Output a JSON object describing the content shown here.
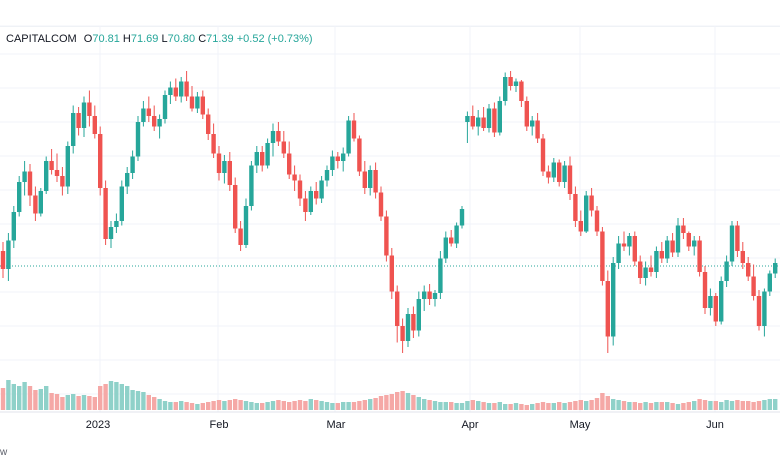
{
  "legend": {
    "symbol": "CAPITALCOM",
    "open_label": "O",
    "open": "70.81",
    "high_label": "H",
    "high": "71.69",
    "low_label": "L",
    "low": "70.80",
    "close_label": "C",
    "close": "71.39",
    "change": "+0.52",
    "change_pct": "(+0.73%)"
  },
  "footer_fragment": "w",
  "chart_data": {
    "type": "candlestick",
    "x_tick_labels": [
      "2023",
      "Feb",
      "Mar",
      "Apr",
      "May",
      "Jun"
    ],
    "price_line": 75.6,
    "ylim": [
      67,
      90
    ],
    "colors": {
      "up": "#26a69a",
      "down": "#ef5350",
      "up_vol": "#8fd1c9",
      "down_vol": "#f5a8a6"
    },
    "candles": [
      [
        76.6,
        77.2,
        74.8,
        75.4
      ],
      [
        75.4,
        77.8,
        74.6,
        77.3
      ],
      [
        77.3,
        79.6,
        76.8,
        79.2
      ],
      [
        79.2,
        81.6,
        78.9,
        81.2
      ],
      [
        81.2,
        82.6,
        80.3,
        81.9
      ],
      [
        81.9,
        82.4,
        79.6,
        80.3
      ],
      [
        80.3,
        80.9,
        78.6,
        79.1
      ],
      [
        79.1,
        80.8,
        78.9,
        80.6
      ],
      [
        80.6,
        82.9,
        80.4,
        82.6
      ],
      [
        82.6,
        83.4,
        81.7,
        82.0
      ],
      [
        82.0,
        83.1,
        81.2,
        81.6
      ],
      [
        81.6,
        82.2,
        80.3,
        80.9
      ],
      [
        80.9,
        83.9,
        80.4,
        83.6
      ],
      [
        83.6,
        86.3,
        83.1,
        85.8
      ],
      [
        85.8,
        86.2,
        84.3,
        84.8
      ],
      [
        84.8,
        86.9,
        84.2,
        86.5
      ],
      [
        86.5,
        87.3,
        84.9,
        85.6
      ],
      [
        85.6,
        86.3,
        84.1,
        84.4
      ],
      [
        84.4,
        84.9,
        80.3,
        80.8
      ],
      [
        80.8,
        81.3,
        77.0,
        77.4
      ],
      [
        77.4,
        78.6,
        76.8,
        78.2
      ],
      [
        78.2,
        79.1,
        77.8,
        78.6
      ],
      [
        78.6,
        81.3,
        78.3,
        80.9
      ],
      [
        80.9,
        82.2,
        80.4,
        81.8
      ],
      [
        81.8,
        83.3,
        81.4,
        82.9
      ],
      [
        82.9,
        85.6,
        82.6,
        85.2
      ],
      [
        85.2,
        86.6,
        84.9,
        86.1
      ],
      [
        86.1,
        86.9,
        85.2,
        85.6
      ],
      [
        85.6,
        86.3,
        84.6,
        84.9
      ],
      [
        84.9,
        85.7,
        84.1,
        85.4
      ],
      [
        85.4,
        87.3,
        85.1,
        87.0
      ],
      [
        87.0,
        87.9,
        86.4,
        87.5
      ],
      [
        87.5,
        88.1,
        86.6,
        86.9
      ],
      [
        86.9,
        88.2,
        86.5,
        87.9
      ],
      [
        87.9,
        88.6,
        86.6,
        86.9
      ],
      [
        86.9,
        87.6,
        85.9,
        86.1
      ],
      [
        86.1,
        87.2,
        85.8,
        86.9
      ],
      [
        86.9,
        87.3,
        85.4,
        85.7
      ],
      [
        85.7,
        86.1,
        84.0,
        84.4
      ],
      [
        84.4,
        85.1,
        82.8,
        83.1
      ],
      [
        83.1,
        83.6,
        81.3,
        81.8
      ],
      [
        81.8,
        83.0,
        81.1,
        82.6
      ],
      [
        82.6,
        83.2,
        80.6,
        81.0
      ],
      [
        81.0,
        81.5,
        77.8,
        78.1
      ],
      [
        78.1,
        78.6,
        76.6,
        77.0
      ],
      [
        77.0,
        80.1,
        76.8,
        79.6
      ],
      [
        79.6,
        82.6,
        79.3,
        82.3
      ],
      [
        82.3,
        83.6,
        81.8,
        83.2
      ],
      [
        83.2,
        83.6,
        81.9,
        82.3
      ],
      [
        82.3,
        84.1,
        82.1,
        83.8
      ],
      [
        83.8,
        85.1,
        82.9,
        84.6
      ],
      [
        84.6,
        85.2,
        83.6,
        83.9
      ],
      [
        83.9,
        84.6,
        82.8,
        83.1
      ],
      [
        83.1,
        83.9,
        81.4,
        81.7
      ],
      [
        81.7,
        82.3,
        80.6,
        81.3
      ],
      [
        81.3,
        81.7,
        79.6,
        80.1
      ],
      [
        80.1,
        80.6,
        78.6,
        79.2
      ],
      [
        79.2,
        80.9,
        79.0,
        80.6
      ],
      [
        80.6,
        81.2,
        79.7,
        80.1
      ],
      [
        80.1,
        81.6,
        79.8,
        81.3
      ],
      [
        81.3,
        82.3,
        80.9,
        82.0
      ],
      [
        82.0,
        83.3,
        81.6,
        82.9
      ],
      [
        82.9,
        83.2,
        82.1,
        82.6
      ],
      [
        82.6,
        83.5,
        81.9,
        83.1
      ],
      [
        83.1,
        85.6,
        82.9,
        85.3
      ],
      [
        85.3,
        85.8,
        83.9,
        84.1
      ],
      [
        84.1,
        84.3,
        81.6,
        81.9
      ],
      [
        81.9,
        82.6,
        80.4,
        80.8
      ],
      [
        80.8,
        82.3,
        80.3,
        82.0
      ],
      [
        82.0,
        82.5,
        80.1,
        80.5
      ],
      [
        80.5,
        80.9,
        78.6,
        78.9
      ],
      [
        78.9,
        79.3,
        75.9,
        76.3
      ],
      [
        76.3,
        76.8,
        73.4,
        73.9
      ],
      [
        73.9,
        74.3,
        70.5,
        71.6
      ],
      [
        71.6,
        72.1,
        69.8,
        70.6
      ],
      [
        70.6,
        72.8,
        70.2,
        72.4
      ],
      [
        72.4,
        72.9,
        70.8,
        71.3
      ],
      [
        71.3,
        73.9,
        70.9,
        73.4
      ],
      [
        73.4,
        74.3,
        72.6,
        73.9
      ],
      [
        73.9,
        74.4,
        73.0,
        73.4
      ],
      [
        73.4,
        74.0,
        72.9,
        73.8
      ],
      [
        73.8,
        76.6,
        73.4,
        76.1
      ],
      [
        76.1,
        77.9,
        75.8,
        77.5
      ],
      [
        77.5,
        78.0,
        76.9,
        77.1
      ],
      [
        77.1,
        78.5,
        76.8,
        78.3
      ],
      [
        78.3,
        79.6,
        78.1,
        79.4
      ],
      [
        85.2,
        85.9,
        83.8,
        85.6
      ],
      [
        85.6,
        86.3,
        84.7,
        84.9
      ],
      [
        84.9,
        86.0,
        84.3,
        85.5
      ],
      [
        85.5,
        86.2,
        84.6,
        84.8
      ],
      [
        84.8,
        86.4,
        84.5,
        86.1
      ],
      [
        86.1,
        86.5,
        84.2,
        84.5
      ],
      [
        84.5,
        86.9,
        84.3,
        86.6
      ],
      [
        86.6,
        88.5,
        86.3,
        88.2
      ],
      [
        88.2,
        88.6,
        87.3,
        87.6
      ],
      [
        87.6,
        88.1,
        87.2,
        87.9
      ],
      [
        87.9,
        88.0,
        86.2,
        86.6
      ],
      [
        86.6,
        86.9,
        84.6,
        84.9
      ],
      [
        84.9,
        85.6,
        84.3,
        85.3
      ],
      [
        85.3,
        85.8,
        83.8,
        84.1
      ],
      [
        84.1,
        84.4,
        81.6,
        81.9
      ],
      [
        81.9,
        82.3,
        81.1,
        81.5
      ],
      [
        81.5,
        82.8,
        81.2,
        82.5
      ],
      [
        82.5,
        82.7,
        80.9,
        81.2
      ],
      [
        81.2,
        82.6,
        80.8,
        82.3
      ],
      [
        82.3,
        82.9,
        80.0,
        80.4
      ],
      [
        80.4,
        80.9,
        78.2,
        78.6
      ],
      [
        78.6,
        79.3,
        77.6,
        77.9
      ],
      [
        77.9,
        80.6,
        77.8,
        80.3
      ],
      [
        80.3,
        80.8,
        78.9,
        79.3
      ],
      [
        79.3,
        79.6,
        77.6,
        77.9
      ],
      [
        77.9,
        78.2,
        74.3,
        74.6
      ],
      [
        74.6,
        75.3,
        69.8,
        70.9
      ],
      [
        70.9,
        76.2,
        70.3,
        75.8
      ],
      [
        75.8,
        77.6,
        75.4,
        77.1
      ],
      [
        77.1,
        77.9,
        76.6,
        76.9
      ],
      [
        76.9,
        77.8,
        76.3,
        77.6
      ],
      [
        77.6,
        77.9,
        75.6,
        75.9
      ],
      [
        75.9,
        76.3,
        74.4,
        74.8
      ],
      [
        74.8,
        75.9,
        74.3,
        75.5
      ],
      [
        75.5,
        76.3,
        74.9,
        75.2
      ],
      [
        75.2,
        76.9,
        74.8,
        76.6
      ],
      [
        76.6,
        77.2,
        75.8,
        76.1
      ],
      [
        76.1,
        77.6,
        75.8,
        77.3
      ],
      [
        77.3,
        77.8,
        76.2,
        76.5
      ],
      [
        76.5,
        78.8,
        76.2,
        78.3
      ],
      [
        78.3,
        78.8,
        77.4,
        77.8
      ],
      [
        77.8,
        77.9,
        76.6,
        76.9
      ],
      [
        76.9,
        77.6,
        76.3,
        77.3
      ],
      [
        77.3,
        77.6,
        74.9,
        75.2
      ],
      [
        75.2,
        75.6,
        72.4,
        72.8
      ],
      [
        72.8,
        74.1,
        72.3,
        73.6
      ],
      [
        73.6,
        73.8,
        71.6,
        71.9
      ],
      [
        71.9,
        74.9,
        71.7,
        74.6
      ],
      [
        74.6,
        76.3,
        74.2,
        75.9
      ],
      [
        75.9,
        78.6,
        75.6,
        78.3
      ],
      [
        78.3,
        78.6,
        76.2,
        76.6
      ],
      [
        76.6,
        77.2,
        75.4,
        75.8
      ],
      [
        75.8,
        76.2,
        74.6,
        74.9
      ],
      [
        74.9,
        75.7,
        73.3,
        73.6
      ],
      [
        73.6,
        74.0,
        71.3,
        71.6
      ],
      [
        71.6,
        74.1,
        70.9,
        73.9
      ],
      [
        73.9,
        75.3,
        73.6,
        75.1
      ],
      [
        75.1,
        76.1,
        74.8,
        75.8
      ]
    ],
    "volumes": [
      0.22,
      0.3,
      0.26,
      0.24,
      0.28,
      0.24,
      0.2,
      0.21,
      0.24,
      0.17,
      0.16,
      0.13,
      0.15,
      0.16,
      0.14,
      0.15,
      0.14,
      0.13,
      0.24,
      0.26,
      0.29,
      0.28,
      0.26,
      0.24,
      0.2,
      0.19,
      0.18,
      0.15,
      0.13,
      0.11,
      0.09,
      0.08,
      0.08,
      0.09,
      0.08,
      0.07,
      0.06,
      0.07,
      0.08,
      0.09,
      0.1,
      0.09,
      0.1,
      0.11,
      0.1,
      0.09,
      0.08,
      0.07,
      0.07,
      0.08,
      0.09,
      0.1,
      0.09,
      0.08,
      0.09,
      0.1,
      0.09,
      0.11,
      0.1,
      0.09,
      0.08,
      0.07,
      0.07,
      0.08,
      0.08,
      0.08,
      0.09,
      0.1,
      0.11,
      0.12,
      0.14,
      0.15,
      0.16,
      0.18,
      0.19,
      0.17,
      0.15,
      0.13,
      0.11,
      0.1,
      0.09,
      0.08,
      0.08,
      0.08,
      0.07,
      0.07,
      0.09,
      0.1,
      0.09,
      0.08,
      0.07,
      0.07,
      0.08,
      0.06,
      0.06,
      0.07,
      0.06,
      0.05,
      0.06,
      0.07,
      0.08,
      0.07,
      0.07,
      0.08,
      0.07,
      0.08,
      0.09,
      0.1,
      0.09,
      0.1,
      0.12,
      0.17,
      0.14,
      0.11,
      0.1,
      0.09,
      0.08,
      0.08,
      0.07,
      0.08,
      0.07,
      0.08,
      0.08,
      0.08,
      0.07,
      0.06,
      0.07,
      0.08,
      0.09,
      0.11,
      0.1,
      0.09,
      0.09,
      0.08,
      0.1,
      0.09,
      0.1,
      0.09,
      0.09,
      0.08,
      0.09,
      0.1,
      0.11,
      0.11
    ]
  }
}
